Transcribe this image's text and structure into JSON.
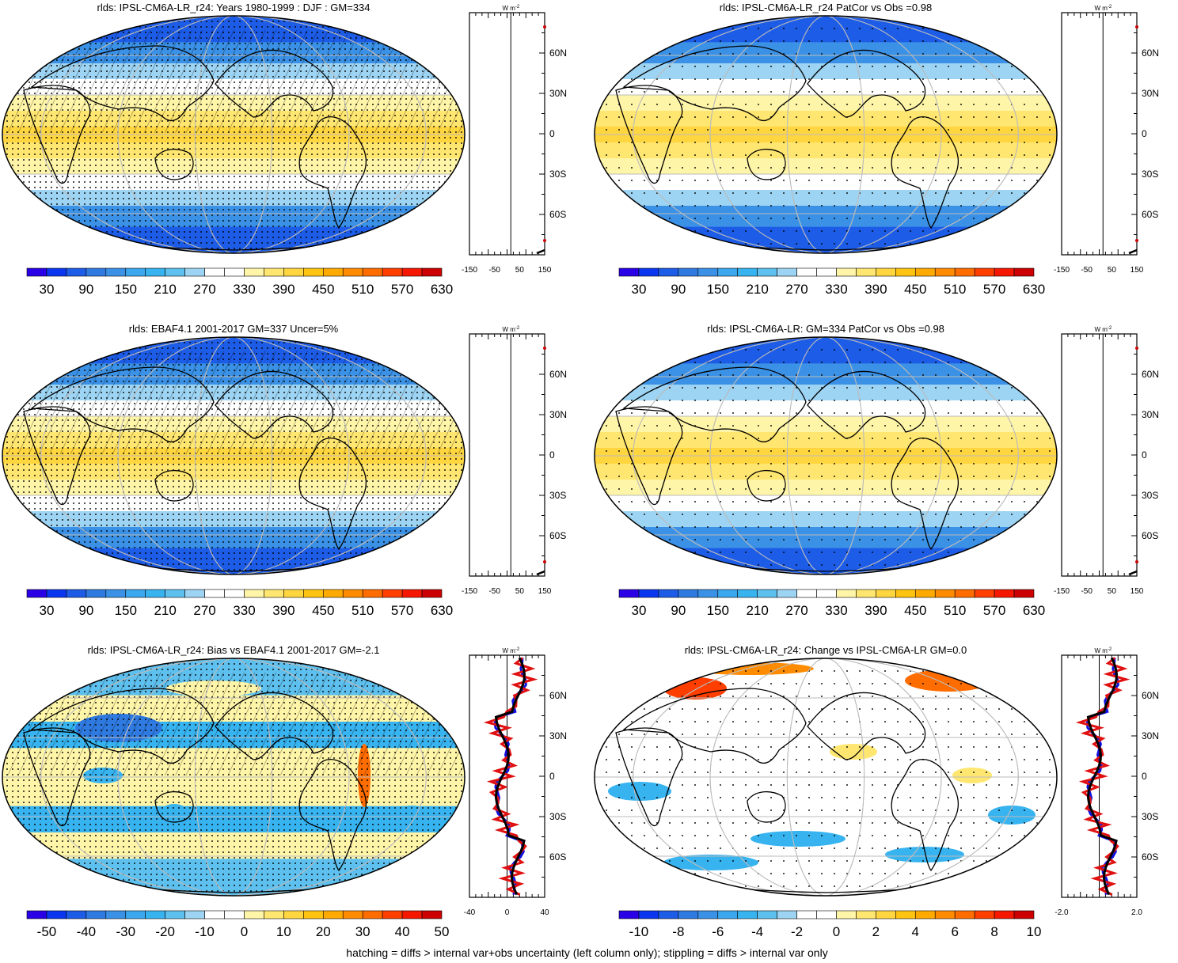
{
  "panels": [
    {
      "title": "rlds: IPSL-CM6A-LR_r24: Years 1980-1999 : DJF : GM=334",
      "kind": "abs",
      "hatch": true,
      "stipple": "dense"
    },
    {
      "title": "rlds: IPSL-CM6A-LR_r24 PatCor vs Obs =0.98",
      "kind": "abs",
      "hatch": false,
      "stipple": "sparse"
    },
    {
      "title": "rlds: EBAF4.1 2001-2017 GM=337 Uncer=5%",
      "kind": "abs",
      "hatch": true,
      "stipple": "dense"
    },
    {
      "title": "rlds: IPSL-CM6A-LR: GM=334 PatCor vs Obs =0.98",
      "kind": "abs",
      "hatch": false,
      "stipple": "sparse"
    },
    {
      "title": "rlds: IPSL-CM6A-LR_r24: Bias vs EBAF4.1 2001-2017 GM=-2.1",
      "kind": "bias",
      "hatch": true,
      "stipple": "dense"
    },
    {
      "title": "rlds: IPSL-CM6A-LR_r24: Change vs IPSL-CM6A-LR GM=0.0",
      "kind": "change",
      "hatch": false,
      "stipple": "sparse"
    }
  ],
  "colorbars": {
    "abs": {
      "labels": [
        "30",
        "90",
        "150",
        "210",
        "270",
        "330",
        "390",
        "450",
        "510",
        "570",
        "630"
      ]
    },
    "bias": {
      "labels": [
        "-50",
        "-40",
        "-30",
        "-20",
        "-10",
        "0",
        "10",
        "20",
        "30",
        "40",
        "50"
      ]
    },
    "change": {
      "labels": [
        "-10",
        "-8",
        "-6",
        "-4",
        "-2",
        "0",
        "2",
        "4",
        "6",
        "8",
        "10"
      ]
    }
  },
  "zonal_mean": {
    "unit": "W m",
    "unit_sup": "-2",
    "lat_labels": [
      "60N",
      "30N",
      "0",
      "30S",
      "60S"
    ],
    "xticks_abs": [
      "-150",
      "-50",
      "50",
      "150"
    ],
    "xticks_bias": [
      "-40",
      "0",
      "40"
    ],
    "xticks_change": [
      "-2.0",
      "2.0"
    ]
  },
  "palette": [
    "#2a00e6",
    "#0a36f0",
    "#1d5ce6",
    "#2f7ae0",
    "#3a91e6",
    "#3ba7ee",
    "#37b3f0",
    "#5ec0ee",
    "#9dd4f3",
    "#ffffff",
    "#ffffff",
    "#fff5a8",
    "#ffe670",
    "#ffd640",
    "#ffc412",
    "#ffaa00",
    "#ff8c00",
    "#ff6c00",
    "#ff3e00",
    "#f51700",
    "#cc0000"
  ],
  "footer": "hatching = diffs > internal var+obs uncertainty (left column only); stippling = diffs > internal var only"
}
